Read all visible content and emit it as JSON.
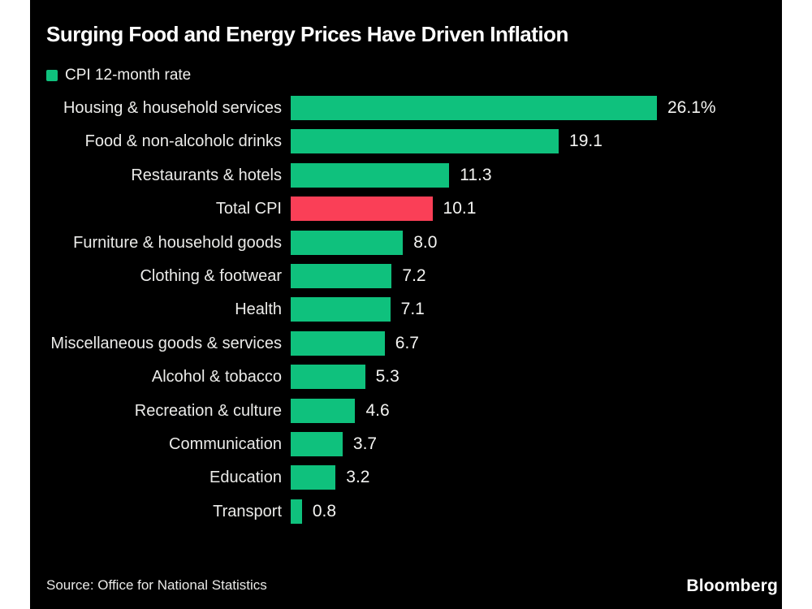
{
  "chart": {
    "title": "Surging Food and Energy Prices Have Driven Inflation",
    "legend_label": "CPI 12-month rate",
    "source": "Source: Office for National Statistics",
    "brand": "Bloomberg"
  },
  "chart_data": {
    "type": "bar",
    "orientation": "horizontal",
    "title": "Surging Food and Energy Prices Have Driven Inflation",
    "legend": "CPI 12-month rate",
    "categories": [
      "Housing & household services",
      "Food & non-alcoholc drinks",
      "Restaurants & hotels",
      "Total CPI",
      "Furniture & household goods",
      "Clothing & footwear",
      "Health",
      "Miscellaneous goods & services",
      "Alcohol & tobacco",
      "Recreation & culture",
      "Communication",
      "Education",
      "Transport"
    ],
    "values": [
      26.1,
      19.1,
      11.3,
      10.1,
      8.0,
      7.2,
      7.1,
      6.7,
      5.3,
      4.6,
      3.7,
      3.2,
      0.8
    ],
    "value_labels": [
      "26.1%",
      "19.1",
      "11.3",
      "10.1",
      "8.0",
      "7.2",
      "7.1",
      "6.7",
      "5.3",
      "4.6",
      "3.7",
      "3.2",
      "0.8"
    ],
    "highlight_category": "Total CPI",
    "colors": {
      "bar_default": "#0fc17d",
      "bar_highlight": "#fa3f57",
      "background": "#000000",
      "text": "#ebebe9"
    },
    "xlim": [
      0,
      26.1
    ],
    "grid": false,
    "legend_position": "top-left"
  }
}
